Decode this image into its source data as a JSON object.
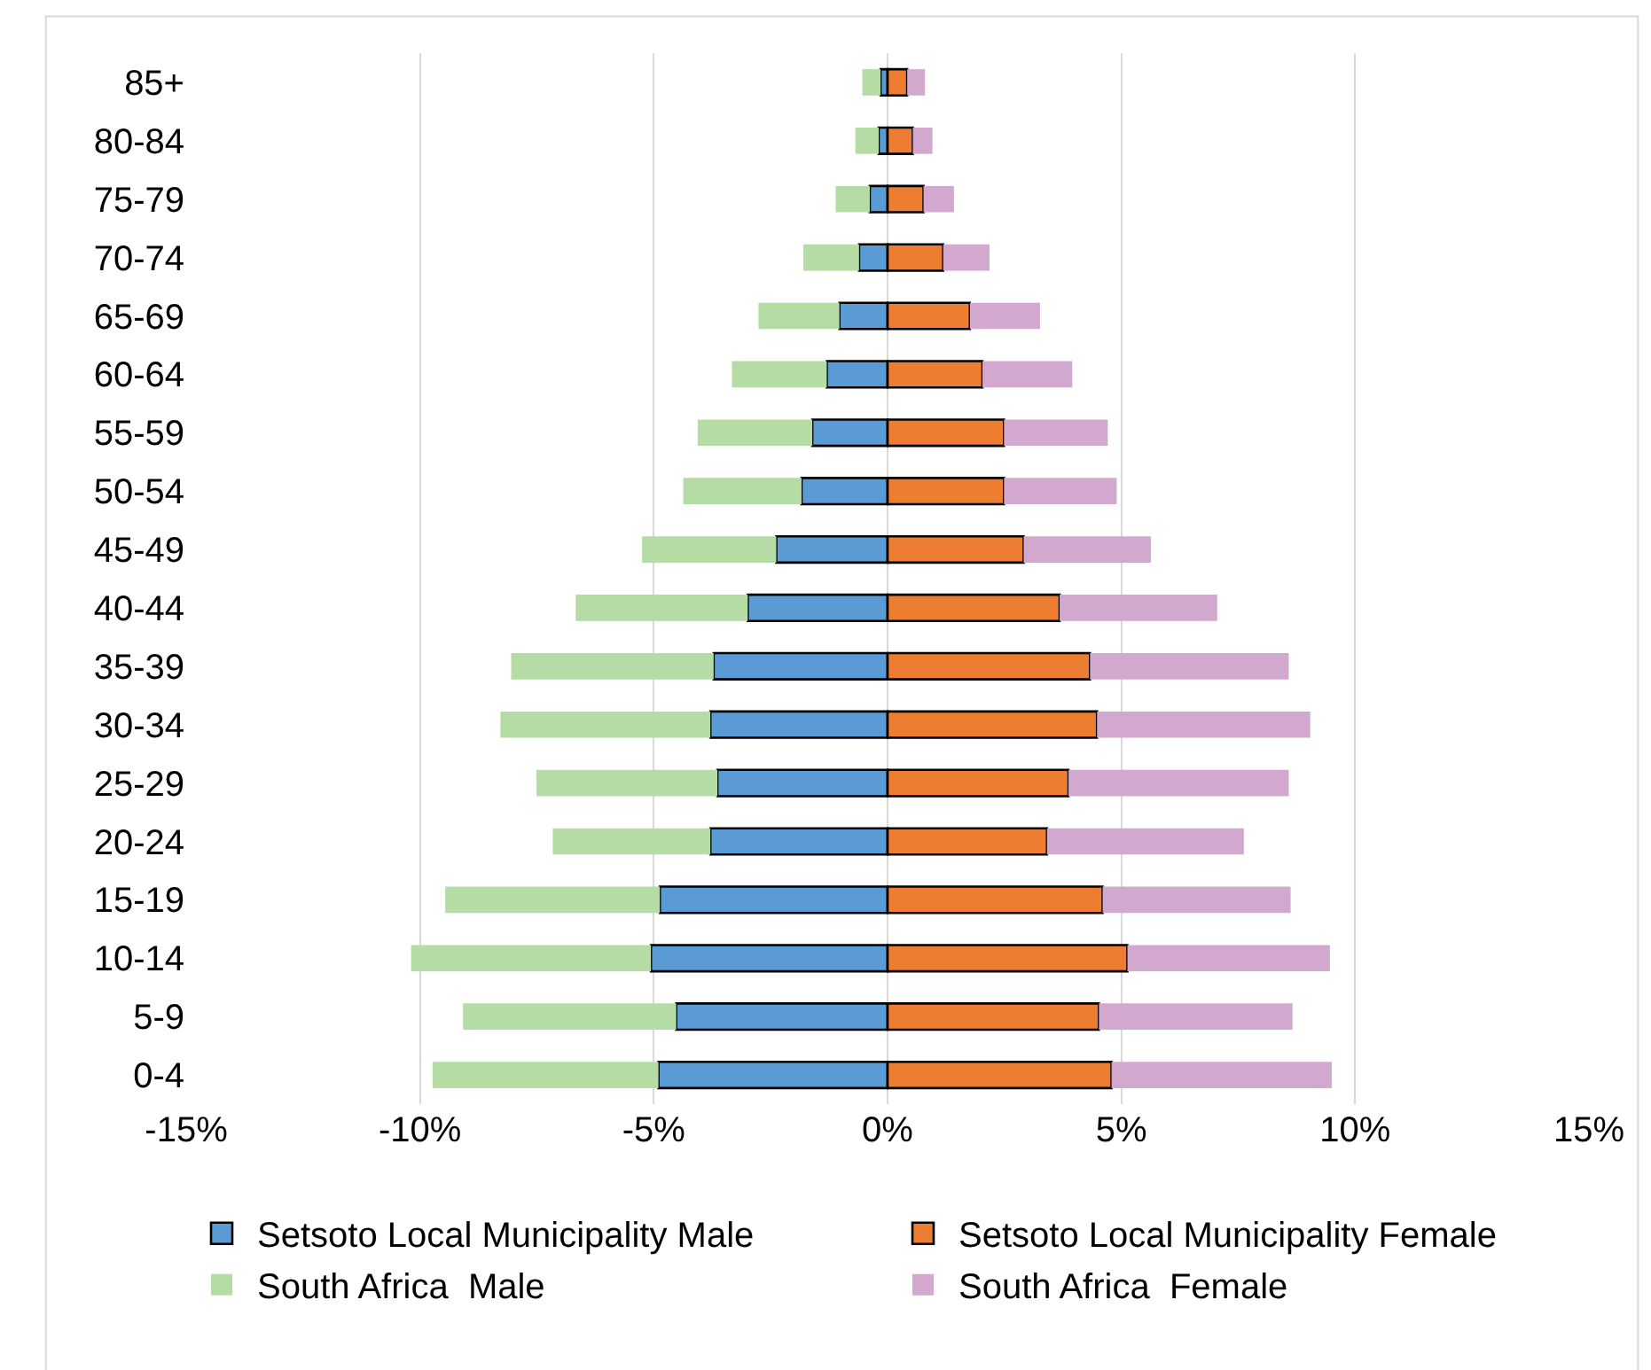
{
  "chart_data": {
    "type": "bar",
    "orientation": "horizontal",
    "categories": [
      "85+",
      "80-84",
      "75-79",
      "70-74",
      "65-69",
      "60-64",
      "55-59",
      "50-54",
      "45-49",
      "40-44",
      "35-39",
      "30-34",
      "25-29",
      "20-24",
      "15-19",
      "10-14",
      "5-9",
      "0-4"
    ],
    "series": [
      {
        "name": "Setsoto Local Municipality Male",
        "color": "#5b9bd5",
        "values": [
          -0.15,
          -0.19,
          -0.38,
          -0.61,
          -1.03,
          -1.3,
          -1.61,
          -1.84,
          -2.38,
          -2.99,
          -3.72,
          -3.79,
          -3.64,
          -3.79,
          -4.87,
          -5.06,
          -4.52,
          -4.9
        ]
      },
      {
        "name": "Setsoto Local Municipality Female",
        "color": "#ed7d31",
        "values": [
          0.42,
          0.54,
          0.77,
          1.19,
          1.76,
          2.03,
          2.49,
          2.49,
          2.91,
          3.68,
          4.33,
          4.48,
          3.87,
          3.41,
          4.6,
          5.13,
          4.52,
          4.79
        ]
      },
      {
        "name": "South Africa  Male",
        "color": "#b4dca4",
        "values": [
          -0.39,
          -0.5,
          -0.73,
          -1.19,
          -1.73,
          -2.03,
          -2.45,
          -2.53,
          -2.87,
          -3.68,
          -4.33,
          -4.49,
          -3.87,
          -3.37,
          -4.59,
          -5.13,
          -4.56,
          -4.83
        ]
      },
      {
        "name": "South Africa  Female",
        "color": "#d3a8cf",
        "values": [
          0.38,
          0.42,
          0.65,
          0.99,
          1.5,
          1.92,
          2.22,
          2.41,
          2.72,
          3.37,
          4.25,
          4.56,
          4.71,
          4.21,
          4.02,
          4.33,
          4.14,
          4.71
        ]
      }
    ],
    "xlim": [
      -15,
      15
    ],
    "xticks": [
      {
        "value": -15,
        "label": "-15%"
      },
      {
        "value": -10,
        "label": "-10%"
      },
      {
        "value": -5,
        "label": "-5%"
      },
      {
        "value": 0,
        "label": "0%"
      },
      {
        "value": 5,
        "label": "5%"
      },
      {
        "value": 10,
        "label": "10%"
      },
      {
        "value": 15,
        "label": "15%"
      }
    ],
    "stacked": true,
    "grid": "x",
    "legend": "bottom"
  }
}
